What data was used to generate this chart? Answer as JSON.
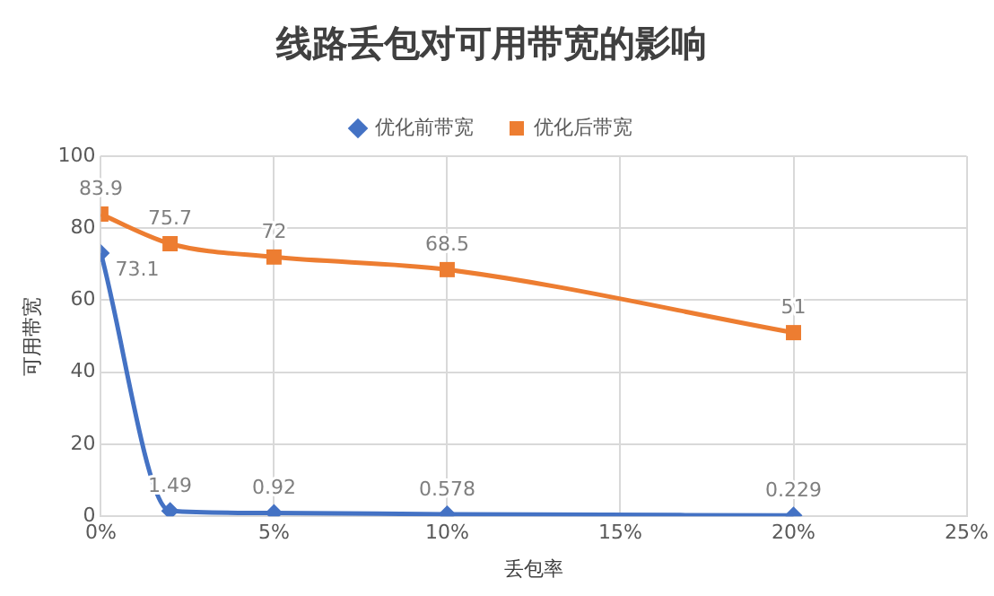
{
  "chart_data": {
    "type": "line",
    "title": "线路丢包对可用带宽的影响",
    "xlabel": "丢包率",
    "ylabel": "可用带宽",
    "x": [
      0,
      2,
      5,
      10,
      20
    ],
    "series": [
      {
        "name": "优化前带宽",
        "color": "#4472c4",
        "marker": "diamond",
        "values": [
          73.1,
          1.49,
          0.92,
          0.578,
          0.229
        ]
      },
      {
        "name": "优化后带宽",
        "color": "#ed7d31",
        "marker": "square",
        "values": [
          83.9,
          75.7,
          72,
          68.5,
          51
        ]
      }
    ],
    "xlim": [
      0,
      25
    ],
    "xticks": [
      {
        "value": 0,
        "label": "0%"
      },
      {
        "value": 5,
        "label": "5%"
      },
      {
        "value": 10,
        "label": "10%"
      },
      {
        "value": 15,
        "label": "15%"
      },
      {
        "value": 20,
        "label": "20%"
      },
      {
        "value": 25,
        "label": "25%"
      }
    ],
    "ylim": [
      0,
      100
    ],
    "yticks": [
      0,
      20,
      40,
      60,
      80,
      100
    ],
    "grid": true,
    "legend": "top",
    "data_labels": true
  }
}
